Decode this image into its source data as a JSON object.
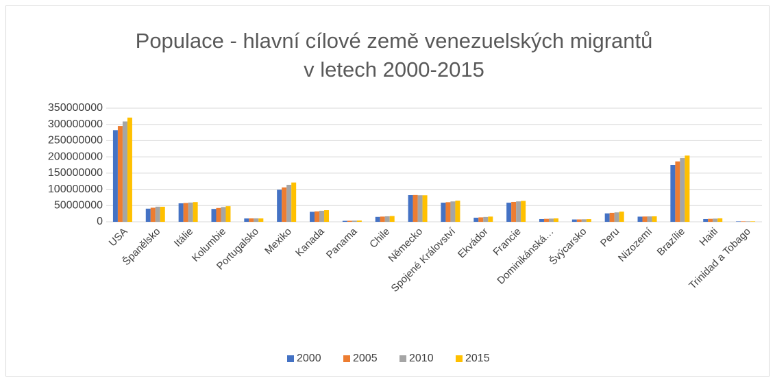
{
  "chart_data": {
    "type": "bar",
    "title": [
      "Populace - hlavní cílové země venezuelských migrantů",
      "v letech 2000-2015"
    ],
    "categories": [
      "USA",
      "Španělsko",
      "Itálie",
      "Kolumbie",
      "Portugalsko",
      "Mexiko",
      "Kanada",
      "Panama",
      "Chile",
      "Německo",
      "Spojené Království",
      "Ekvádor",
      "Francie",
      "Dominikánská…",
      "Švýcarsko",
      "Peru",
      "Nizozemí",
      "Brazílie",
      "Haiti",
      "Trinidad a Tobago"
    ],
    "series": [
      {
        "name": "2000",
        "color": "#4472c4",
        "values": [
          282000000,
          40500000,
          56900000,
          39600000,
          10300000,
          98900000,
          30800000,
          3000000,
          15200000,
          82200000,
          58900000,
          12600000,
          58900000,
          8500000,
          7200000,
          26000000,
          15900000,
          175000000,
          8500000,
          1270000
        ]
      },
      {
        "name": "2005",
        "color": "#ed7d31",
        "values": [
          295000000,
          43400000,
          57900000,
          42600000,
          10500000,
          106000000,
          32200000,
          3300000,
          16100000,
          82500000,
          60400000,
          13800000,
          61200000,
          9200000,
          7400000,
          27600000,
          16300000,
          186000000,
          9200000,
          1300000
        ]
      },
      {
        "name": "2010",
        "color": "#a5a5a5",
        "values": [
          309000000,
          46600000,
          59300000,
          45500000,
          10600000,
          114000000,
          34000000,
          3600000,
          17000000,
          81800000,
          62800000,
          15000000,
          62900000,
          9900000,
          7800000,
          29000000,
          16600000,
          196000000,
          9900000,
          1330000
        ]
      },
      {
        "name": "2015",
        "color": "#ffc000",
        "values": [
          321000000,
          46400000,
          60700000,
          48200000,
          10400000,
          121000000,
          35800000,
          3900000,
          17800000,
          81700000,
          65100000,
          16100000,
          64400000,
          10500000,
          8300000,
          31400000,
          16900000,
          204000000,
          10700000,
          1360000
        ]
      }
    ],
    "ylim": [
      0,
      350000000
    ],
    "yticks": [
      0,
      50000000,
      100000000,
      150000000,
      200000000,
      250000000,
      300000000,
      350000000
    ],
    "grid": true,
    "legend": "bottom"
  }
}
